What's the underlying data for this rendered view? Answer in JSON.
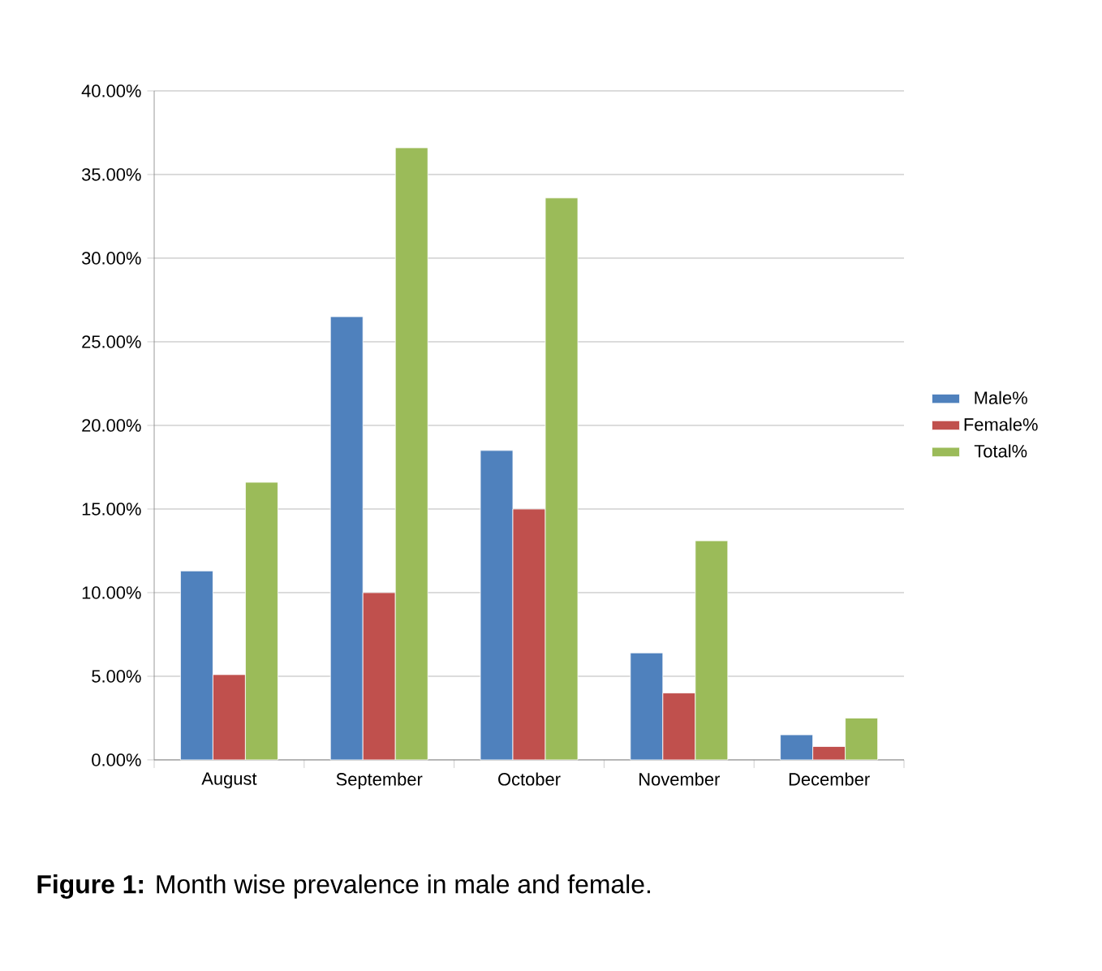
{
  "chart_data": {
    "type": "bar",
    "categories": [
      "August",
      "September",
      "October",
      "November",
      "December"
    ],
    "series": [
      {
        "name": "Male%",
        "color": "#4f81bd",
        "values": [
          11.3,
          26.5,
          18.5,
          6.4,
          1.5
        ]
      },
      {
        "name": "Female%",
        "color": "#c0504d",
        "values": [
          5.1,
          10.0,
          15.0,
          4.0,
          0.8
        ]
      },
      {
        "name": "Total%",
        "color": "#9bbb59",
        "values": [
          16.6,
          36.6,
          33.6,
          13.1,
          2.5
        ]
      }
    ],
    "ylim": [
      0,
      40
    ],
    "yticks": [
      {
        "value": 0,
        "label": "0.00%"
      },
      {
        "value": 5,
        "label": "5.00%"
      },
      {
        "value": 10,
        "label": "10.00%"
      },
      {
        "value": 15,
        "label": "15.00%"
      },
      {
        "value": 20,
        "label": "20.00%"
      },
      {
        "value": 25,
        "label": "25.00%"
      },
      {
        "value": 30,
        "label": "30.00%"
      },
      {
        "value": 35,
        "label": "35.00%"
      },
      {
        "value": 40,
        "label": "40.00%"
      }
    ],
    "grid": "y",
    "legend": "right",
    "annotations": [
      "**Figure 1:** Month wise prevalence in male and female."
    ]
  }
}
